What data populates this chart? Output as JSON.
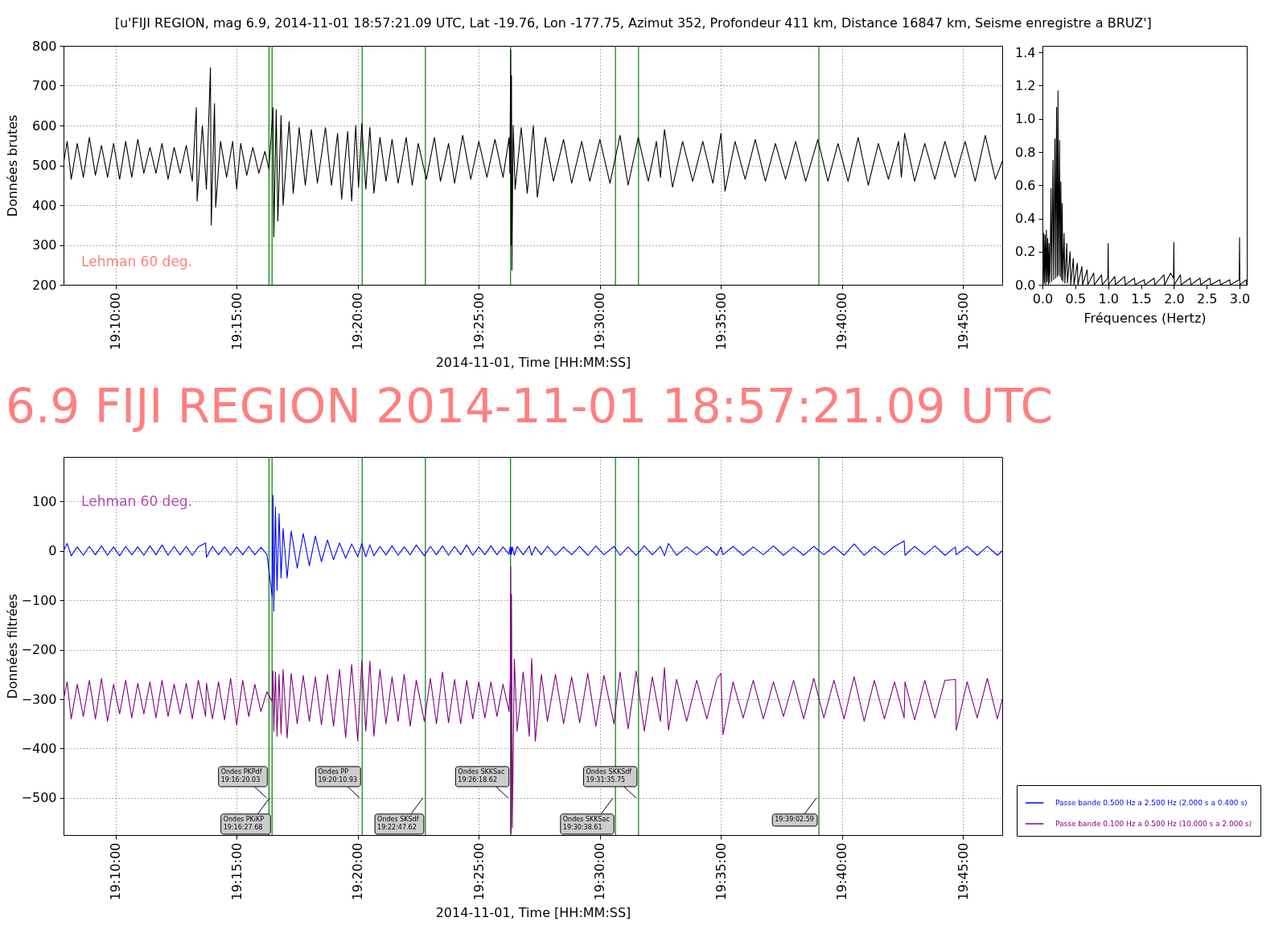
{
  "chart_data": [
    {
      "type": "line",
      "title": "[u'FIJI REGION, mag 6.9, 2014-11-01 18:57:21.09 UTC, Lat -19.76, Lon -177.75, Azimut 352, Profondeur 411 km, Distance 16847 km, Seisme enregistre a BRUZ']",
      "xlabel": "2014-11-01, Time [HH:MM:SS]",
      "ylabel": "Données brutes",
      "xlim": [
        "2014-11-01T19:07:51",
        "2014-11-01T19:46:37"
      ],
      "ylim": [
        200,
        800
      ],
      "xticks": [
        {
          "value": "2014-11-01T19:10:00",
          "label": "19:10:00"
        },
        {
          "value": "2014-11-01T19:15:00",
          "label": "19:15:00"
        },
        {
          "value": "2014-11-01T19:20:00",
          "label": "19:20:00"
        },
        {
          "value": "2014-11-01T19:25:00",
          "label": "19:25:00"
        },
        {
          "value": "2014-11-01T19:30:00",
          "label": "19:30:00"
        },
        {
          "value": "2014-11-01T19:35:00",
          "label": "19:35:00"
        },
        {
          "value": "2014-11-01T19:40:00",
          "label": "19:40:00"
        },
        {
          "value": "2014-11-01T19:45:00",
          "label": "19:45:00"
        }
      ],
      "yticks": [
        200,
        300,
        400,
        500,
        600,
        700,
        800
      ],
      "grid": true,
      "ref_lines": [
        {
          "axis": "x",
          "value": "2014-11-01T19:16:20.03",
          "color": "#008000"
        },
        {
          "axis": "x",
          "value": "2014-11-01T19:16:27.68",
          "color": "#008000"
        },
        {
          "axis": "x",
          "value": "2014-11-01T19:20:10.93",
          "color": "#008000"
        },
        {
          "axis": "x",
          "value": "2014-11-01T19:22:47.62",
          "color": "#008000"
        },
        {
          "axis": "x",
          "value": "2014-11-01T19:26:18.62",
          "color": "#008000"
        },
        {
          "axis": "x",
          "value": "2014-11-01T19:30:38.61",
          "color": "#008000"
        },
        {
          "axis": "x",
          "value": "2014-11-01T19:31:35.75",
          "color": "#008000"
        },
        {
          "axis": "x",
          "value": "2014-11-01T19:39:02.59",
          "color": "#008000"
        }
      ],
      "annotations": [
        "Lehman 60 deg."
      ],
      "x": [
        "2014-11-01T19:07:51",
        "2014-11-01T19:08:00",
        "2014-11-01T19:08:10",
        "2014-11-01T19:08:25",
        "2014-11-01T19:08:40",
        "2014-11-01T19:08:55",
        "2014-11-01T19:09:10",
        "2014-11-01T19:09:25",
        "2014-11-01T19:09:40",
        "2014-11-01T19:09:55",
        "2014-11-01T19:10:10",
        "2014-11-01T19:10:25",
        "2014-11-01T19:10:40",
        "2014-11-01T19:10:55",
        "2014-11-01T19:11:10",
        "2014-11-01T19:11:25",
        "2014-11-01T19:11:40",
        "2014-11-01T19:11:55",
        "2014-11-01T19:12:10",
        "2014-11-01T19:12:25",
        "2014-11-01T19:12:40",
        "2014-11-01T19:12:55",
        "2014-11-01T19:13:10",
        "2014-11-01T19:13:20",
        "2014-11-01T19:13:22",
        "2014-11-01T19:13:35",
        "2014-11-01T19:13:45",
        "2014-11-01T19:13:55",
        "2014-11-01T19:13:57",
        "2014-11-01T19:14:05",
        "2014-11-01T19:14:08",
        "2014-11-01T19:14:20",
        "2014-11-01T19:14:35",
        "2014-11-01T19:14:50",
        "2014-11-01T19:15:00",
        "2014-11-01T19:15:10",
        "2014-11-01T19:15:25",
        "2014-11-01T19:15:40",
        "2014-11-01T19:15:55",
        "2014-11-01T19:16:10",
        "2014-11-01T19:16:20",
        "2014-11-01T19:16:30",
        "2014-11-01T19:16:32",
        "2014-11-01T19:16:38",
        "2014-11-01T19:16:42",
        "2014-11-01T19:16:50",
        "2014-11-01T19:16:55",
        "2014-11-01T19:17:10",
        "2014-11-01T19:17:20",
        "2014-11-01T19:17:35",
        "2014-11-01T19:17:50",
        "2014-11-01T19:18:05",
        "2014-11-01T19:18:20",
        "2014-11-01T19:18:40",
        "2014-11-01T19:18:55",
        "2014-11-01T19:19:10",
        "2014-11-01T19:19:20",
        "2014-11-01T19:19:35",
        "2014-11-01T19:19:45",
        "2014-11-01T19:19:55",
        "2014-11-01T19:20:02",
        "2014-11-01T19:20:10",
        "2014-11-01T19:20:20",
        "2014-11-01T19:20:30",
        "2014-11-01T19:20:40",
        "2014-11-01T19:20:55",
        "2014-11-01T19:21:10",
        "2014-11-01T19:21:25",
        "2014-11-01T19:21:40",
        "2014-11-01T19:22:00",
        "2014-11-01T19:22:15",
        "2014-11-01T19:22:30",
        "2014-11-01T19:22:50",
        "2014-11-01T19:23:10",
        "2014-11-01T19:23:25",
        "2014-11-01T19:23:45",
        "2014-11-01T19:24:00",
        "2014-11-01T19:24:20",
        "2014-11-01T19:24:40",
        "2014-11-01T19:25:00",
        "2014-11-01T19:25:20",
        "2014-11-01T19:25:40",
        "2014-11-01T19:26:00",
        "2014-11-01T19:26:15",
        "2014-11-01T19:26:17",
        "2014-11-01T19:26:19",
        "2014-11-01T19:26:20",
        "2014-11-01T19:26:21",
        "2014-11-01T19:26:22",
        "2014-11-01T19:26:25",
        "2014-11-01T19:26:30",
        "2014-11-01T19:26:45",
        "2014-11-01T19:27:00",
        "2014-11-01T19:27:15",
        "2014-11-01T19:27:25",
        "2014-11-01T19:27:45",
        "2014-11-01T19:28:05",
        "2014-11-01T19:28:30",
        "2014-11-01T19:28:50",
        "2014-11-01T19:29:15",
        "2014-11-01T19:29:35",
        "2014-11-01T19:30:00",
        "2014-11-01T19:30:25",
        "2014-11-01T19:30:50",
        "2014-11-01T19:31:10",
        "2014-11-01T19:31:35",
        "2014-11-01T19:32:00",
        "2014-11-01T19:32:20",
        "2014-11-01T19:32:30",
        "2014-11-01T19:32:40",
        "2014-11-01T19:33:00",
        "2014-11-01T19:33:25",
        "2014-11-01T19:33:50",
        "2014-11-01T19:34:15",
        "2014-11-01T19:34:40",
        "2014-11-01T19:35:00",
        "2014-11-01T19:35:10",
        "2014-11-01T19:35:35",
        "2014-11-01T19:36:00",
        "2014-11-01T19:36:25",
        "2014-11-01T19:36:50",
        "2014-11-01T19:37:15",
        "2014-11-01T19:37:40",
        "2014-11-01T19:38:05",
        "2014-11-01T19:38:30",
        "2014-11-01T19:39:00",
        "2014-11-01T19:39:25",
        "2014-11-01T19:39:50",
        "2014-11-01T19:40:15",
        "2014-11-01T19:40:40",
        "2014-11-01T19:41:05",
        "2014-11-01T19:41:30",
        "2014-11-01T19:41:55",
        "2014-11-01T19:42:20",
        "2014-11-01T19:42:27",
        "2014-11-01T19:42:35",
        "2014-11-01T19:43:00",
        "2014-11-01T19:43:25",
        "2014-11-01T19:43:50",
        "2014-11-01T19:44:15",
        "2014-11-01T19:44:40",
        "2014-11-01T19:45:05",
        "2014-11-01T19:45:30",
        "2014-11-01T19:45:55",
        "2014-11-01T19:46:20",
        "2014-11-01T19:46:37"
      ],
      "series": [
        {
          "color": "#000000",
          "values": [
            505,
            560,
            465,
            555,
            470,
            570,
            475,
            550,
            470,
            555,
            465,
            560,
            470,
            565,
            480,
            545,
            480,
            555,
            465,
            545,
            480,
            550,
            460,
            645,
            410,
            600,
            440,
            745,
            350,
            655,
            395,
            560,
            470,
            560,
            440,
            555,
            475,
            545,
            480,
            535,
            490,
            645,
            320,
            640,
            360,
            625,
            400,
            610,
            430,
            595,
            450,
            590,
            455,
            595,
            450,
            580,
            415,
            585,
            410,
            600,
            445,
            605,
            440,
            595,
            430,
            570,
            460,
            565,
            455,
            570,
            450,
            555,
            465,
            570,
            460,
            555,
            455,
            575,
            465,
            560,
            470,
            565,
            470,
            570,
            480,
            790,
            300,
            725,
            237,
            600,
            440,
            595,
            430,
            600,
            420,
            570,
            460,
            565,
            455,
            560,
            460,
            565,
            455,
            575,
            450,
            570,
            460,
            560,
            470,
            590,
            445,
            560,
            460,
            560,
            455,
            580,
            435,
            560,
            465,
            565,
            460,
            555,
            465,
            560,
            460,
            565,
            460,
            555,
            460,
            570,
            450,
            555,
            465,
            560,
            470,
            580,
            460,
            555,
            465,
            560,
            470,
            560,
            460,
            575,
            465,
            510
          ]
        }
      ]
    },
    {
      "type": "line",
      "xlabel": "Fréquences (Hertz)",
      "xlim": [
        0,
        3.11
      ],
      "ylim": [
        0,
        1.44
      ],
      "xticks": [
        {
          "value": 0,
          "label": "0.0"
        },
        0.5,
        {
          "value": 1,
          "label": "1.0"
        },
        1.5,
        {
          "value": 2,
          "label": "2.0"
        },
        2.5,
        {
          "value": 3,
          "label": "3.0"
        }
      ],
      "yticks": [
        {
          "value": 0,
          "label": "0.0"
        },
        0.2,
        0.4,
        0.6,
        0.8,
        {
          "value": 1,
          "label": "1.0"
        },
        1.2,
        1.4
      ],
      "x": [
        0,
        0.01,
        0.02,
        0.03,
        0.04,
        0.05,
        0.06,
        0.07,
        0.08,
        0.09,
        0.1,
        0.11,
        0.12,
        0.13,
        0.14,
        0.16,
        0.17,
        0.19,
        0.2,
        0.215,
        0.225,
        0.236,
        0.245,
        0.26,
        0.27,
        0.28,
        0.29,
        0.3,
        0.31,
        0.33,
        0.34,
        0.37,
        0.38,
        0.42,
        0.43,
        0.47,
        0.48,
        0.53,
        0.54,
        0.6,
        0.61,
        0.68,
        0.69,
        0.78,
        0.79,
        0.9,
        0.91,
        0.995,
        1.0,
        1.005,
        1.1,
        1.11,
        1.25,
        1.26,
        1.4,
        1.41,
        1.55,
        1.56,
        1.7,
        1.71,
        1.85,
        1.86,
        1.95,
        1.995,
        2.0,
        2.005,
        2.1,
        2.11,
        2.25,
        2.26,
        2.4,
        2.41,
        2.55,
        2.56,
        2.7,
        2.71,
        2.85,
        2.86,
        2.995,
        3.0,
        3.005,
        3.1,
        3.11
      ],
      "series": [
        {
          "color": "#000000",
          "values": [
            0.33,
            0.0,
            0.31,
            0.01,
            0.3,
            0.0,
            0.33,
            0.02,
            0.28,
            0.0,
            0.25,
            0.01,
            0.22,
            0.58,
            0.02,
            0.75,
            0.03,
            0.88,
            0.04,
            1.07,
            0.05,
            1.17,
            0.06,
            0.87,
            0.05,
            0.62,
            0.03,
            0.49,
            0.02,
            0.31,
            0.01,
            0.25,
            0.01,
            0.2,
            0.0,
            0.16,
            0.0,
            0.13,
            0.0,
            0.11,
            0.0,
            0.09,
            0.0,
            0.07,
            0.0,
            0.06,
            0.0,
            0.04,
            0.25,
            0.0,
            0.05,
            0.0,
            0.05,
            0.0,
            0.04,
            0.0,
            0.03,
            0.0,
            0.04,
            0.0,
            0.06,
            0.0,
            0.07,
            0.04,
            0.255,
            0.0,
            0.06,
            0.0,
            0.04,
            0.0,
            0.04,
            0.0,
            0.04,
            0.0,
            0.03,
            0.0,
            0.03,
            0.0,
            0.03,
            0.285,
            0.0,
            0.03,
            0.0
          ]
        }
      ]
    },
    {
      "type": "line",
      "title": "6.9 FIJI REGION 2014-11-01 18:57:21.09 UTC",
      "xlabel": "2014-11-01, Time [HH:MM:SS]",
      "ylabel": "Données filtrées",
      "xlim": [
        "2014-11-01T19:07:51",
        "2014-11-01T19:46:37"
      ],
      "ylim": [
        -575,
        190
      ],
      "xticks": [
        {
          "value": "2014-11-01T19:10:00",
          "label": "19:10:00"
        },
        {
          "value": "2014-11-01T19:15:00",
          "label": "19:15:00"
        },
        {
          "value": "2014-11-01T19:20:00",
          "label": "19:20:00"
        },
        {
          "value": "2014-11-01T19:25:00",
          "label": "19:25:00"
        },
        {
          "value": "2014-11-01T19:30:00",
          "label": "19:30:00"
        },
        {
          "value": "2014-11-01T19:35:00",
          "label": "19:35:00"
        },
        {
          "value": "2014-11-01T19:40:00",
          "label": "19:40:00"
        },
        {
          "value": "2014-11-01T19:45:00",
          "label": "19:45:00"
        }
      ],
      "yticks": [
        -500,
        -400,
        -300,
        -200,
        -100,
        0,
        100
      ],
      "grid": true,
      "legend": "bottom right",
      "ref_lines": [
        {
          "axis": "x",
          "value": "2014-11-01T19:16:20.03",
          "color": "#008000"
        },
        {
          "axis": "x",
          "value": "2014-11-01T19:16:27.68",
          "color": "#008000"
        },
        {
          "axis": "x",
          "value": "2014-11-01T19:20:10.93",
          "color": "#008000"
        },
        {
          "axis": "x",
          "value": "2014-11-01T19:22:47.62",
          "color": "#008000"
        },
        {
          "axis": "x",
          "value": "2014-11-01T19:26:18.62",
          "color": "#008000"
        },
        {
          "axis": "x",
          "value": "2014-11-01T19:30:38.61",
          "color": "#008000"
        },
        {
          "axis": "x",
          "value": "2014-11-01T19:31:35.75",
          "color": "#008000"
        },
        {
          "axis": "x",
          "value": "2014-11-01T19:39:02.59",
          "color": "#008000"
        }
      ],
      "annotations": [
        "Lehman 60 deg.",
        {
          "text": "Ondes PKPdf\n19:16:20.03",
          "x": "2014-11-01T19:16:20.03",
          "y": -500
        },
        {
          "text": "Ondes PKiKP\n19:16:27.68",
          "x": "2014-11-01T19:16:27.68",
          "y": -500
        },
        {
          "text": "Ondes PP\n19:20:10.93",
          "x": "2014-11-01T19:20:10.93",
          "y": -500
        },
        {
          "text": "Ondes SKSdf\n19:22:47.62",
          "x": "2014-11-01T19:22:47.62",
          "y": -500
        },
        {
          "text": "Ondes SKKSac\n19:26:18.62",
          "x": "2014-11-01T19:26:18.62",
          "y": -500
        },
        {
          "text": "Ondes SKKSac\n19:30:38.61",
          "x": "2014-11-01T19:30:38.61",
          "y": -500
        },
        {
          "text": "Ondes SKKSdf\n19:31:35.75",
          "x": "2014-11-01T19:31:35.75",
          "y": -500
        },
        {
          "text": "19:39:02.59",
          "x": "2014-11-01T19:39:02.59",
          "y": -500
        }
      ],
      "x": [
        "2014-11-01T19:07:51",
        "2014-11-01T19:08:00",
        "2014-11-01T19:08:10",
        "2014-11-01T19:08:25",
        "2014-11-01T19:08:40",
        "2014-11-01T19:08:55",
        "2014-11-01T19:09:10",
        "2014-11-01T19:09:25",
        "2014-11-01T19:09:40",
        "2014-11-01T19:09:55",
        "2014-11-01T19:10:10",
        "2014-11-01T19:10:25",
        "2014-11-01T19:10:40",
        "2014-11-01T19:10:55",
        "2014-11-01T19:11:10",
        "2014-11-01T19:11:25",
        "2014-11-01T19:11:40",
        "2014-11-01T19:11:55",
        "2014-11-01T19:12:10",
        "2014-11-01T19:12:25",
        "2014-11-01T19:12:40",
        "2014-11-01T19:12:55",
        "2014-11-01T19:13:10",
        "2014-11-01T19:13:25",
        "2014-11-01T19:13:43",
        "2014-11-01T19:13:45",
        "2014-11-01T19:14:00",
        "2014-11-01T19:14:15",
        "2014-11-01T19:14:30",
        "2014-11-01T19:14:45",
        "2014-11-01T19:15:00",
        "2014-11-01T19:15:15",
        "2014-11-01T19:15:30",
        "2014-11-01T19:15:45",
        "2014-11-01T19:16:00",
        "2014-11-01T19:16:15",
        "2014-11-01T19:16:28",
        "2014-11-01T19:16:30",
        "2014-11-01T19:16:32",
        "2014-11-01T19:16:36",
        "2014-11-01T19:16:40",
        "2014-11-01T19:16:45",
        "2014-11-01T19:16:50",
        "2014-11-01T19:16:55",
        "2014-11-01T19:17:05",
        "2014-11-01T19:17:15",
        "2014-11-01T19:17:30",
        "2014-11-01T19:17:45",
        "2014-11-01T19:18:00",
        "2014-11-01T19:18:15",
        "2014-11-01T19:18:30",
        "2014-11-01T19:18:45",
        "2014-11-01T19:19:00",
        "2014-11-01T19:19:15",
        "2014-11-01T19:19:30",
        "2014-11-01T19:19:45",
        "2014-11-01T19:20:00",
        "2014-11-01T19:20:10",
        "2014-11-01T19:20:20",
        "2014-11-01T19:20:30",
        "2014-11-01T19:20:40",
        "2014-11-01T19:20:55",
        "2014-11-01T19:21:10",
        "2014-11-01T19:21:25",
        "2014-11-01T19:21:40",
        "2014-11-01T19:21:55",
        "2014-11-01T19:22:10",
        "2014-11-01T19:22:25",
        "2014-11-01T19:22:45",
        "2014-11-01T19:23:00",
        "2014-11-01T19:23:15",
        "2014-11-01T19:23:30",
        "2014-11-01T19:23:45",
        "2014-11-01T19:24:00",
        "2014-11-01T19:24:15",
        "2014-11-01T19:24:30",
        "2014-11-01T19:24:45",
        "2014-11-01T19:25:00",
        "2014-11-01T19:25:15",
        "2014-11-01T19:25:30",
        "2014-11-01T19:25:45",
        "2014-11-01T19:26:00",
        "2014-11-01T19:26:15",
        "2014-11-01T19:26:18",
        "2014-11-01T19:26:19",
        "2014-11-01T19:26:20",
        "2014-11-01T19:26:21",
        "2014-11-01T19:26:23",
        "2014-11-01T19:26:28",
        "2014-11-01T19:26:35",
        "2014-11-01T19:26:50",
        "2014-11-01T19:27:05",
        "2014-11-01T19:27:11",
        "2014-11-01T19:27:20",
        "2014-11-01T19:27:35",
        "2014-11-01T19:27:50",
        "2014-11-01T19:28:10",
        "2014-11-01T19:28:30",
        "2014-11-01T19:28:50",
        "2014-11-01T19:29:10",
        "2014-11-01T19:29:30",
        "2014-11-01T19:29:50",
        "2014-11-01T19:30:10",
        "2014-11-01T19:30:35",
        "2014-11-01T19:30:50",
        "2014-11-01T19:31:10",
        "2014-11-01T19:31:30",
        "2014-11-01T19:31:50",
        "2014-11-01T19:32:10",
        "2014-11-01T19:32:30",
        "2014-11-01T19:32:40",
        "2014-11-01T19:32:50",
        "2014-11-01T19:33:10",
        "2014-11-01T19:33:35",
        "2014-11-01T19:34:00",
        "2014-11-01T19:34:25",
        "2014-11-01T19:34:50",
        "2014-11-01T19:35:00",
        "2014-11-01T19:35:05",
        "2014-11-01T19:35:30",
        "2014-11-01T19:35:55",
        "2014-11-01T19:36:20",
        "2014-11-01T19:36:45",
        "2014-11-01T19:37:10",
        "2014-11-01T19:37:35",
        "2014-11-01T19:38:00",
        "2014-11-01T19:38:25",
        "2014-11-01T19:38:50",
        "2014-11-01T19:39:15",
        "2014-11-01T19:39:40",
        "2014-11-01T19:40:05",
        "2014-11-01T19:40:30",
        "2014-11-01T19:40:55",
        "2014-11-01T19:41:20",
        "2014-11-01T19:41:45",
        "2014-11-01T19:42:10",
        "2014-11-01T19:42:34",
        "2014-11-01T19:42:36",
        "2014-11-01T19:43:00",
        "2014-11-01T19:43:25",
        "2014-11-01T19:43:50",
        "2014-11-01T19:44:15",
        "2014-11-01T19:44:41",
        "2014-11-01T19:44:43",
        "2014-11-01T19:45:10",
        "2014-11-01T19:45:35",
        "2014-11-01T19:46:00",
        "2014-11-01T19:46:25",
        "2014-11-01T19:46:37"
      ],
      "series": [
        {
          "name": "Passe bande 0.500 Hz a 2.500 Hz (2.000 s a 0.400 s)",
          "color": "#0000ff",
          "values": [
            0,
            15,
            -10,
            8,
            -9,
            9,
            -8,
            10,
            -9,
            8,
            -10,
            9,
            -8,
            8,
            -9,
            10,
            -8,
            12,
            -9,
            9,
            -8,
            9,
            -9,
            8,
            16,
            -13,
            9,
            -8,
            8,
            -9,
            8,
            -8,
            9,
            -8,
            7,
            -7,
            -92,
            112,
            -122,
            88,
            -80,
            75,
            -55,
            45,
            -55,
            40,
            -35,
            35,
            -30,
            30,
            -22,
            22,
            -18,
            16,
            -15,
            14,
            -12,
            15,
            -12,
            12,
            -10,
            9,
            -8,
            10,
            -9,
            8,
            -8,
            12,
            -10,
            9,
            -8,
            10,
            -9,
            9,
            -8,
            12,
            -9,
            8,
            -8,
            10,
            -8,
            8,
            -7,
            9,
            -8,
            7,
            -6,
            8,
            -9,
            9,
            -8,
            10,
            -9,
            8,
            -8,
            9,
            -9,
            8,
            -8,
            9,
            -9,
            10,
            -8,
            9,
            -9,
            8,
            -9,
            10,
            -8,
            9,
            -10,
            15,
            -9,
            8,
            -8,
            9,
            -9,
            8,
            -8,
            9,
            -9,
            8,
            -8,
            10,
            -9,
            8,
            -9,
            9,
            -8,
            9,
            -9,
            14,
            -9,
            9,
            -8,
            9,
            20,
            -9,
            9,
            -8,
            10,
            -9,
            8,
            -8,
            9,
            -9,
            9,
            -9,
            0
          ]
        },
        {
          "name": "Passe bande 0.100 Hz a 0.500 Hz (10.000 s a 2.000 s)",
          "color": "#800080",
          "values": [
            -300,
            -265,
            -340,
            -270,
            -335,
            -262,
            -340,
            -258,
            -345,
            -270,
            -330,
            -262,
            -338,
            -268,
            -330,
            -265,
            -338,
            -262,
            -335,
            -270,
            -330,
            -268,
            -340,
            -262,
            -335,
            -268,
            -340,
            -265,
            -342,
            -258,
            -352,
            -262,
            -335,
            -270,
            -325,
            -285,
            -305,
            -243,
            -365,
            -245,
            -375,
            -250,
            -370,
            -240,
            -379,
            -248,
            -350,
            -252,
            -345,
            -255,
            -352,
            -250,
            -355,
            -240,
            -378,
            -230,
            -384,
            -223,
            -365,
            -223,
            -375,
            -240,
            -350,
            -255,
            -345,
            -250,
            -355,
            -262,
            -345,
            -258,
            -350,
            -245,
            -348,
            -260,
            -350,
            -262,
            -340,
            -265,
            -338,
            -265,
            -335,
            -270,
            -325,
            -260,
            -32,
            -572,
            -88,
            -560,
            -219,
            -365,
            -245,
            -375,
            -218,
            -385,
            -250,
            -345,
            -250,
            -350,
            -255,
            -348,
            -248,
            -355,
            -252,
            -350,
            -245,
            -360,
            -243,
            -365,
            -255,
            -345,
            -236,
            -363,
            -260,
            -345,
            -262,
            -340,
            -258,
            -248,
            -372,
            -265,
            -338,
            -262,
            -340,
            -265,
            -335,
            -262,
            -340,
            -258,
            -338,
            -262,
            -340,
            -255,
            -345,
            -262,
            -340,
            -265,
            -338,
            -265,
            -342,
            -262,
            -338,
            -262,
            -260,
            -363,
            -265,
            -338,
            -258,
            -340,
            -300
          ]
        }
      ]
    }
  ]
}
